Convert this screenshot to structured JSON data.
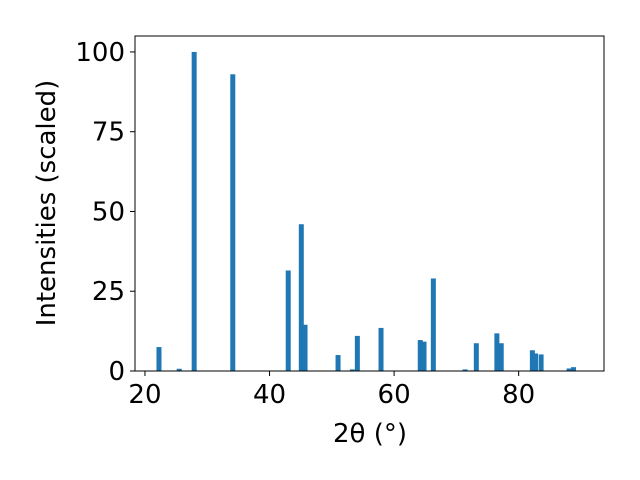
{
  "chart_data": {
    "type": "bar",
    "xlabel": "2θ (°)",
    "ylabel": "Intensities (scaled)",
    "x": [
      22.25,
      25.5,
      27.9,
      34.1,
      43.0,
      45.1,
      45.7,
      51.0,
      53.3,
      54.1,
      57.9,
      64.2,
      64.8,
      66.3,
      71.4,
      73.2,
      76.5,
      77.2,
      82.2,
      82.7,
      83.6,
      88.1,
      88.8
    ],
    "values": [
      7.5,
      0.7,
      100,
      93,
      31.5,
      46,
      14.5,
      5,
      0.5,
      11,
      13.5,
      9.7,
      9.2,
      29,
      0.5,
      8.7,
      11.8,
      8.7,
      6.5,
      5.5,
      5.2,
      0.8,
      1.2
    ],
    "color": "#1f77b4",
    "xlim": [
      18.4,
      93.7
    ],
    "xticks": [
      20,
      40,
      60,
      80
    ],
    "ylim": [
      0,
      105
    ],
    "yticks": [
      0,
      25,
      50,
      75,
      100
    ]
  }
}
